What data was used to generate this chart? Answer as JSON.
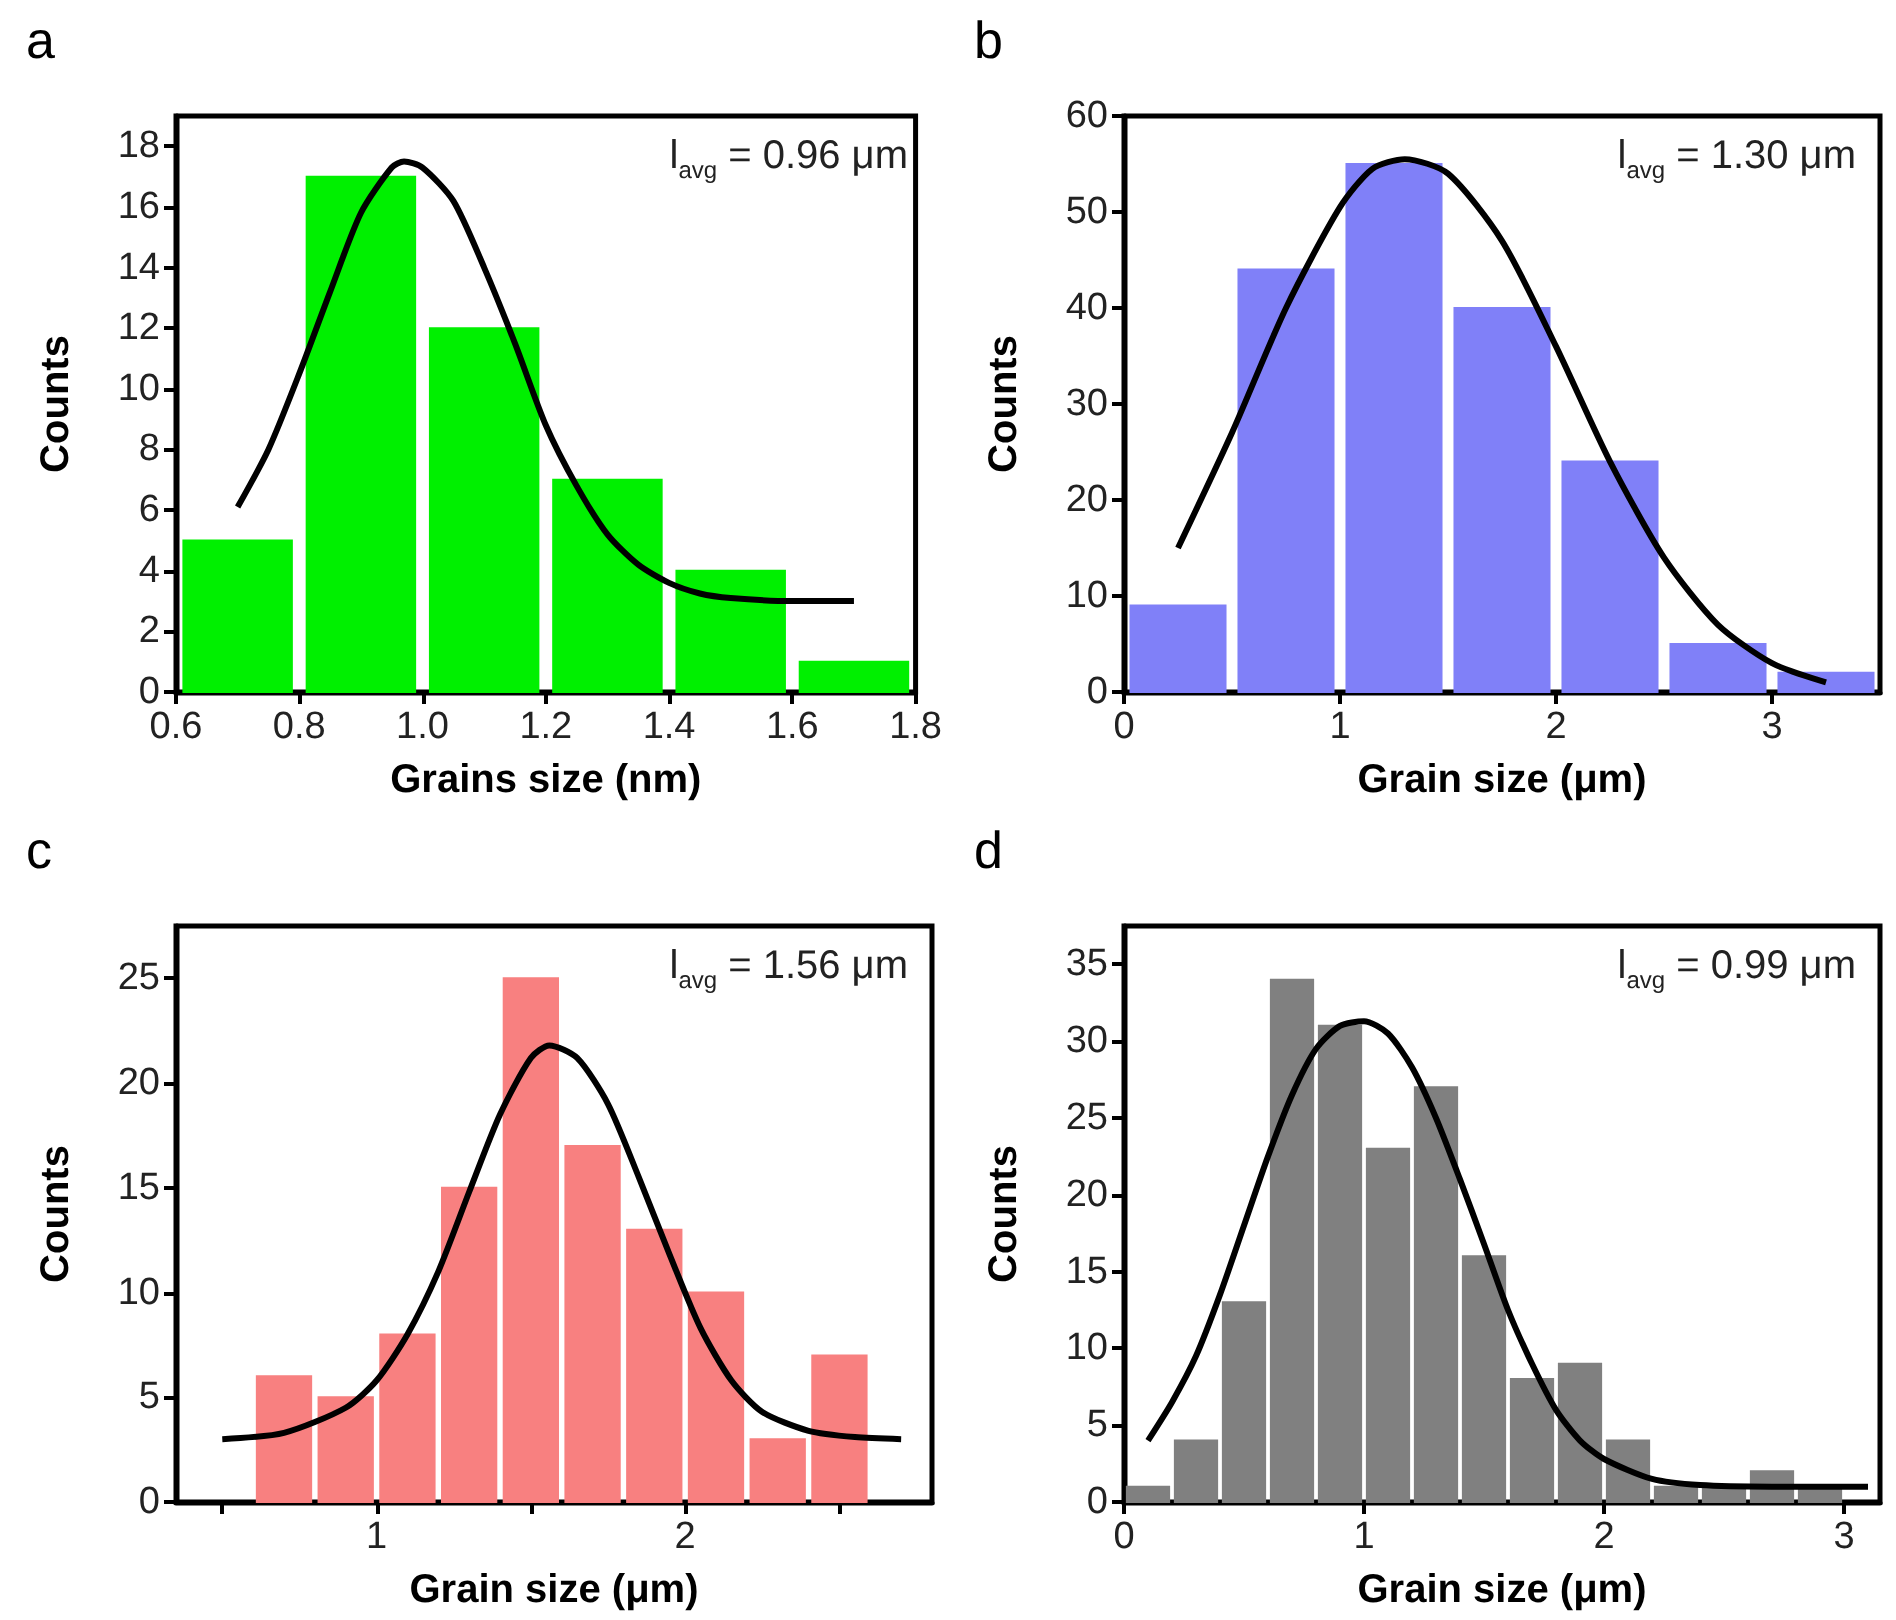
{
  "chart_data": [
    {
      "type": "histogram",
      "title": "a",
      "xlabel": "Grains size (nm)",
      "ylabel": "Counts",
      "annotations": [
        "l$_{avg}$ = 0.96 μm"
      ],
      "bins": [
        0.6,
        0.8,
        1.0,
        1.2,
        1.4,
        1.6,
        1.8
      ],
      "series": [
        {
          "color": "#00f000",
          "values": [
            5,
            17,
            12,
            7,
            4,
            1
          ]
        },
        {
          "type": "line",
          "color": "#000000",
          "x": [
            0.7,
            0.75,
            0.8,
            0.85,
            0.9,
            0.95,
            0.97,
            1.0,
            1.05,
            1.1,
            1.15,
            1.2,
            1.25,
            1.3,
            1.35,
            1.4,
            1.45,
            1.5,
            1.6,
            1.7
          ],
          "values": [
            6.1,
            8,
            10.5,
            13.2,
            15.8,
            17.3,
            17.5,
            17.3,
            16.2,
            14,
            11.5,
            8.8,
            6.8,
            5.2,
            4.2,
            3.6,
            3.25,
            3.1,
            3.0,
            3.0
          ]
        }
      ],
      "xlim": [
        0.6,
        1.8
      ],
      "xticks": [
        0.6,
        0.8,
        {
          "value": 1,
          "label": "1.0"
        },
        1.2,
        1.4,
        1.6,
        1.8
      ],
      "ylim": [
        0,
        19
      ],
      "yticks": [
        0,
        2,
        4,
        6,
        8,
        10,
        12,
        14,
        16,
        18
      ]
    },
    {
      "type": "histogram",
      "title": "b",
      "xlabel": "Grain size (μm)",
      "ylabel": "Counts",
      "annotations": [
        "l$_{avg}$ = 1.30 μm"
      ],
      "bins": [
        0,
        0.5,
        1.0,
        1.5,
        2.0,
        2.5,
        3.0,
        3.5
      ],
      "series": [
        {
          "color": "#8080f8",
          "values": [
            9,
            44,
            55,
            40,
            24,
            5,
            2
          ]
        },
        {
          "type": "line",
          "color": "#000000",
          "x": [
            0.25,
            0.5,
            0.75,
            1.0,
            1.15,
            1.3,
            1.5,
            1.75,
            2.0,
            2.25,
            2.5,
            2.75,
            3.0,
            3.25
          ],
          "values": [
            15,
            27,
            40,
            50.5,
            54.5,
            55.5,
            54,
            47,
            36,
            24,
            14,
            7,
            3,
            1
          ]
        }
      ],
      "xlim": [
        0,
        3.5
      ],
      "xticks": [
        0,
        1,
        2,
        3
      ],
      "ylim": [
        0,
        60
      ],
      "yticks": [
        0,
        10,
        20,
        30,
        40,
        50,
        60
      ]
    },
    {
      "type": "histogram",
      "title": "c",
      "xlabel": "Grain size (μm)",
      "ylabel": "Counts",
      "annotations": [
        "l$_{avg}$ = 1.56 μm"
      ],
      "bins": [
        0.6,
        0.8,
        1.0,
        1.2,
        1.4,
        1.6,
        1.8,
        2.0,
        2.2,
        2.4,
        2.6
      ],
      "series": [
        {
          "color": "#f88080",
          "values": [
            6,
            5,
            8,
            15,
            25,
            17,
            13,
            10,
            3,
            7
          ]
        },
        {
          "type": "line",
          "color": "#000000",
          "x": [
            0.5,
            0.7,
            0.9,
            1.0,
            1.1,
            1.2,
            1.3,
            1.4,
            1.5,
            1.56,
            1.65,
            1.75,
            1.85,
            1.95,
            2.05,
            2.15,
            2.25,
            2.4,
            2.55,
            2.7
          ],
          "values": [
            3,
            3.3,
            4.5,
            5.8,
            8,
            11,
            14.8,
            18.5,
            21.2,
            21.8,
            21.2,
            19,
            15.5,
            11.8,
            8.3,
            5.8,
            4.3,
            3.4,
            3.1,
            3
          ]
        }
      ],
      "xlim": [
        0.35,
        2.8
      ],
      "xticks": [
        {
          "value": 0.5,
          "label": null
        },
        1,
        {
          "value": 1.5,
          "label": null
        },
        2,
        {
          "value": 2.5,
          "label": null
        }
      ],
      "ylim": [
        0,
        27.5
      ],
      "yticks": [
        0,
        5,
        10,
        15,
        20,
        25
      ]
    },
    {
      "type": "histogram",
      "title": "d",
      "xlabel": "Grain size (μm)",
      "ylabel": "Counts",
      "annotations": [
        "l$_{avg}$ = 0.99 μm"
      ],
      "bins": [
        0,
        0.2,
        0.4,
        0.6,
        0.8,
        1.0,
        1.2,
        1.4,
        1.6,
        1.8,
        2.0,
        2.2,
        2.4,
        2.6,
        2.8,
        3.0
      ],
      "series": [
        {
          "color": "#808080",
          "values": [
            1,
            4,
            13,
            34,
            31,
            23,
            27,
            16,
            8,
            9,
            4,
            1,
            1,
            2,
            1
          ]
        },
        {
          "type": "line",
          "color": "#000000",
          "x": [
            0.1,
            0.2,
            0.3,
            0.4,
            0.5,
            0.6,
            0.7,
            0.8,
            0.9,
            1.0,
            1.1,
            1.2,
            1.3,
            1.4,
            1.5,
            1.6,
            1.7,
            1.8,
            1.9,
            2.0,
            2.2,
            2.4,
            2.7,
            3.1
          ],
          "values": [
            4,
            6.5,
            9.5,
            13.5,
            18,
            22.5,
            26.5,
            29.5,
            31,
            31.3,
            30.5,
            28.3,
            25,
            21,
            16.8,
            12.5,
            9,
            6,
            4,
            2.8,
            1.5,
            1.1,
            1,
            1
          ]
        }
      ],
      "xlim": [
        0,
        3.15
      ],
      "xticks": [
        0,
        1,
        2,
        3
      ],
      "ylim": [
        0,
        37.5
      ],
      "yticks": [
        0,
        5,
        10,
        15,
        20,
        25,
        30,
        35
      ]
    }
  ]
}
